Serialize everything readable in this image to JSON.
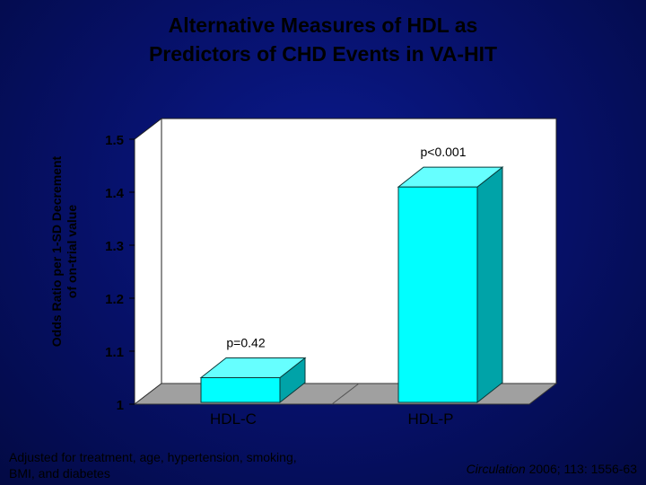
{
  "title": {
    "line1": "Alternative Measures of HDL as",
    "line2": "Predictors of CHD Events in VA-HIT"
  },
  "ylabel": {
    "line1": "Odds Ratio per 1-SD Decrement",
    "line2": "of on-trial value"
  },
  "chart_data": {
    "type": "bar",
    "categories": [
      "HDL-C",
      "HDL-P"
    ],
    "values": [
      1.05,
      1.41
    ],
    "annotations": [
      "p=0.42",
      "p<0.001"
    ],
    "yticks": [
      "1",
      "1.1",
      "1.2",
      "1.3",
      "1.4",
      "1.5"
    ],
    "ylim": [
      1,
      1.5
    ],
    "grid": false,
    "style": "3d",
    "colors": {
      "bar_front": "#00ffff",
      "bar_side": "#00a3a8",
      "bar_top": "#66ffff",
      "wall": "#ffffff",
      "floor": "#a0a0a0"
    }
  },
  "footnote": "Adjusted for treatment, age, hypertension, smoking, BMI, and diabetes",
  "citation": {
    "journal": "Circulation",
    "details": " 2006; 113: 1556-63"
  }
}
